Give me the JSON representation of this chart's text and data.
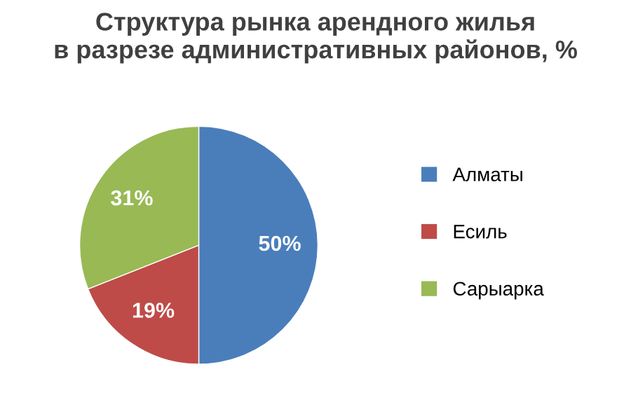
{
  "chart_data": {
    "type": "pie",
    "title": "Структура рынка арендного жилья\nв разрезе административных районов, %",
    "categories": [
      "Алматы",
      "Есиль",
      "Сарыарка"
    ],
    "values": [
      50,
      19,
      31
    ],
    "colors": [
      "#4a7ebb",
      "#be4b48",
      "#98b954"
    ],
    "value_labels": [
      "50%",
      "19%",
      "31%"
    ],
    "legend": "right"
  }
}
